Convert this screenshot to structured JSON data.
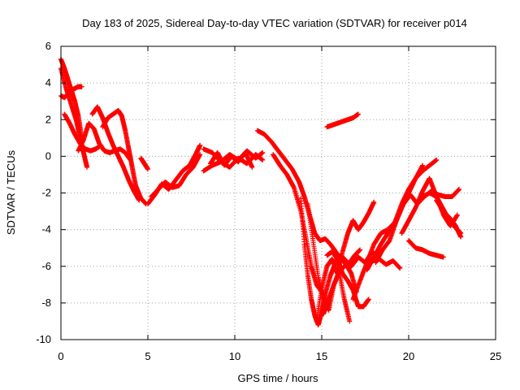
{
  "chart_data": {
    "type": "scatter",
    "title": "Day 183 of 2025, Sidereal Day-to-day VTEC variation (SDTVAR) for receiver p014",
    "xlabel": "GPS time / hours",
    "ylabel": "SDTVAR / TECUs",
    "xlim": [
      0,
      25
    ],
    "ylim": [
      -10,
      6
    ],
    "xticks": [
      "0",
      "5",
      "10",
      "15",
      "20",
      "25"
    ],
    "yticks": [
      "-10",
      "-8",
      "-6",
      "-4",
      "-2",
      "0",
      "2",
      "4",
      "6"
    ],
    "grid": true,
    "marker": "+",
    "color": "#ff0000",
    "series": [
      {
        "x": [
          0.0,
          0.2,
          0.4,
          0.6,
          0.8,
          1.0,
          1.2
        ],
        "y": [
          5.3,
          4.8,
          4.2,
          3.6,
          3.0,
          2.2,
          1.0
        ]
      },
      {
        "x": [
          0.0,
          0.3,
          0.6,
          0.9,
          1.1,
          1.3,
          1.5
        ],
        "y": [
          4.8,
          3.7,
          2.8,
          1.9,
          1.0,
          0.2,
          -0.6
        ]
      },
      {
        "x": [
          0.0,
          0.2,
          0.4,
          0.6,
          0.8,
          1.0,
          1.2
        ],
        "y": [
          3.3,
          3.2,
          3.4,
          3.6,
          3.7,
          3.8,
          3.8
        ]
      },
      {
        "x": [
          0.2,
          0.5,
          0.8,
          1.1,
          1.4,
          1.7,
          2.0,
          2.3
        ],
        "y": [
          2.3,
          1.8,
          1.2,
          0.7,
          0.4,
          0.3,
          0.4,
          0.6
        ]
      },
      {
        "x": [
          1.0,
          1.3,
          1.6,
          1.9,
          2.2,
          2.5,
          2.8,
          3.1,
          3.4,
          3.7,
          4.0
        ],
        "y": [
          0.3,
          0.9,
          1.8,
          1.5,
          0.7,
          0.3,
          0.2,
          0.3,
          0.4,
          0.2,
          -0.2
        ]
      },
      {
        "x": [
          1.8,
          2.1,
          2.4,
          2.7,
          3.0,
          3.3,
          3.6,
          3.9,
          4.2,
          4.5
        ],
        "y": [
          2.3,
          2.7,
          2.1,
          1.3,
          0.6,
          0.0,
          -0.6,
          -1.3,
          -1.9,
          -2.4
        ]
      },
      {
        "x": [
          2.4,
          2.7,
          3.0,
          3.3,
          3.5,
          3.7,
          3.9,
          4.1,
          4.3,
          4.6,
          4.9
        ],
        "y": [
          1.6,
          2.1,
          2.3,
          2.5,
          2.2,
          1.4,
          0.4,
          -0.6,
          -1.6,
          -2.3,
          -2.6
        ]
      },
      {
        "x": [
          4.6,
          4.8,
          5.0
        ],
        "y": [
          -0.1,
          -0.4,
          -0.7
        ]
      },
      {
        "x": [
          5.0,
          5.4,
          5.8,
          6.2,
          6.6,
          7.0,
          7.4,
          7.8,
          8.0
        ],
        "y": [
          -2.6,
          -2.1,
          -1.5,
          -1.8,
          -1.3,
          -0.8,
          -0.5,
          0.2,
          0.6
        ]
      },
      {
        "x": [
          5.2,
          5.6,
          6.0,
          6.4,
          6.8,
          7.2,
          7.6,
          8.0
        ],
        "y": [
          -2.2,
          -1.8,
          -1.4,
          -1.7,
          -1.6,
          -1.0,
          -0.6,
          0.1
        ]
      },
      {
        "x": [
          8.2,
          8.7,
          9.2,
          9.7,
          10.2,
          10.7,
          11.2,
          11.6
        ],
        "y": [
          0.4,
          0.2,
          -0.3,
          0.1,
          -0.2,
          0.3,
          -0.1,
          0.2
        ]
      },
      {
        "x": [
          8.2,
          8.7,
          9.2,
          9.7,
          10.2,
          10.7,
          11.2,
          11.6
        ],
        "y": [
          -0.8,
          -0.5,
          -0.3,
          -0.6,
          -0.1,
          -0.4,
          0.1,
          -0.2
        ]
      },
      {
        "x": [
          8.6,
          9.0,
          9.4,
          9.8,
          10.2,
          10.6,
          11.0
        ],
        "y": [
          -0.4,
          0.2,
          -0.5,
          0.0,
          -0.3,
          0.2,
          -0.6
        ]
      },
      {
        "x": [
          11.3,
          11.7,
          12.1,
          12.5,
          12.9,
          13.3,
          13.7,
          14.0,
          14.3,
          14.6,
          14.9,
          15.2,
          15.5,
          15.8,
          16.1,
          16.4,
          16.7,
          17.0
        ],
        "y": [
          1.4,
          1.2,
          0.8,
          0.3,
          -0.2,
          -0.7,
          -1.4,
          -2.2,
          -3.2,
          -4.2,
          -4.6,
          -4.5,
          -4.8,
          -5.2,
          -5.6,
          -5.9,
          -6.4,
          -7.4
        ]
      },
      {
        "x": [
          12.2,
          12.6,
          13.0,
          13.4,
          13.8,
          14.1,
          14.4,
          14.7,
          15.0
        ],
        "y": [
          0.1,
          -0.5,
          -1.0,
          -1.7,
          -3.0,
          -4.5,
          -6.0,
          -7.0,
          -7.4
        ]
      },
      {
        "x": [
          13.8,
          14.0,
          14.2,
          14.4,
          14.6,
          14.8,
          15.0,
          15.2,
          15.5,
          15.8,
          16.1,
          16.4,
          16.7,
          17.1,
          17.5,
          17.9,
          18.3,
          18.7,
          19.1,
          19.5
        ],
        "y": [
          -2.3,
          -4.8,
          -6.5,
          -7.8,
          -8.7,
          -9.2,
          -8.5,
          -7.5,
          -6.5,
          -5.8,
          -5.4,
          -5.7,
          -6.0,
          -5.5,
          -5.8,
          -5.2,
          -5.6,
          -5.9,
          -5.7,
          -6.1
        ]
      },
      {
        "x": [
          14.2,
          14.5,
          14.8,
          15.1,
          15.4,
          15.7,
          16.0,
          16.3,
          16.6
        ],
        "y": [
          -2.6,
          -4.6,
          -6.6,
          -7.8,
          -8.4,
          -7.0,
          -6.3,
          -7.8,
          -9.0
        ]
      },
      {
        "x": [
          14.7,
          15.0,
          15.3,
          15.6,
          15.9,
          16.2,
          16.5,
          16.8,
          17.1,
          17.4,
          17.7,
          18.0
        ],
        "y": [
          -9.0,
          -7.2,
          -6.0,
          -5.6,
          -6.4,
          -5.2,
          -4.2,
          -3.5,
          -4.0,
          -3.6,
          -3.1,
          -2.5
        ]
      },
      {
        "x": [
          15.1,
          15.4,
          15.7,
          16.0,
          16.3,
          16.6,
          16.9,
          17.2
        ],
        "y": [
          -8.6,
          -7.8,
          -7.0,
          -6.3,
          -6.0,
          -5.8,
          -5.4,
          -5.1
        ]
      },
      {
        "x": [
          15.3,
          15.6,
          15.9,
          16.2,
          16.5,
          16.8,
          17.1,
          17.4,
          17.7
        ],
        "y": [
          -5.4,
          -5.2,
          -5.6,
          -6.4,
          -6.8,
          -7.3,
          -8.2,
          -8.2,
          -7.8
        ]
      },
      {
        "x": [
          15.3,
          15.6,
          15.9,
          16.2,
          16.5,
          16.8,
          17.1
        ],
        "y": [
          1.6,
          1.7,
          1.8,
          1.9,
          2.0,
          2.1,
          2.3
        ]
      },
      {
        "x": [
          16.8,
          17.2,
          17.6,
          18.0,
          18.4,
          18.8,
          19.2,
          19.6,
          20.0,
          20.4,
          20.8,
          21.2,
          21.6
        ],
        "y": [
          -7.8,
          -6.8,
          -5.8,
          -4.8,
          -4.2,
          -4.0,
          -3.6,
          -2.6,
          -1.8,
          -1.2,
          -0.8,
          -0.5,
          -0.2
        ]
      },
      {
        "x": [
          17.6,
          18.0,
          18.4,
          18.8,
          19.2,
          19.6,
          20.0,
          20.4,
          20.8
        ],
        "y": [
          -6.2,
          -5.5,
          -4.8,
          -4.2,
          -3.7,
          -2.8,
          -2.0,
          -1.2,
          -0.5
        ]
      },
      {
        "x": [
          18.1,
          18.5,
          18.9,
          19.3,
          19.7,
          20.1,
          20.5,
          20.9,
          21.3,
          21.7,
          22.1,
          22.5,
          22.9
        ],
        "y": [
          -5.8,
          -5.1,
          -4.6,
          -3.5,
          -2.6,
          -2.1,
          -2.6,
          -2.2,
          -1.9,
          -2.1,
          -2.2,
          -2.2,
          -1.8
        ]
      },
      {
        "x": [
          19.6,
          20.0,
          20.4,
          20.8,
          21.2,
          21.6,
          22.0,
          22.4,
          22.8
        ],
        "y": [
          -4.2,
          -3.5,
          -2.8,
          -1.9,
          -1.2,
          -2.2,
          -3.2,
          -3.8,
          -3.2
        ]
      },
      {
        "x": [
          20.0,
          20.4,
          20.8,
          21.2,
          21.6,
          22.0
        ],
        "y": [
          -4.6,
          -5.0,
          -5.1,
          -5.3,
          -5.4,
          -5.5
        ]
      },
      {
        "x": [
          20.8,
          21.2,
          21.6,
          22.0,
          22.4,
          22.8,
          23.0
        ],
        "y": [
          -2.2,
          -2.0,
          -2.2,
          -2.9,
          -3.6,
          -4.0,
          -4.2
        ]
      },
      {
        "x": [
          21.6,
          22.0,
          22.4,
          22.7,
          23.0
        ],
        "y": [
          -2.4,
          -3.0,
          -3.4,
          -3.8,
          -4.4
        ]
      }
    ]
  }
}
